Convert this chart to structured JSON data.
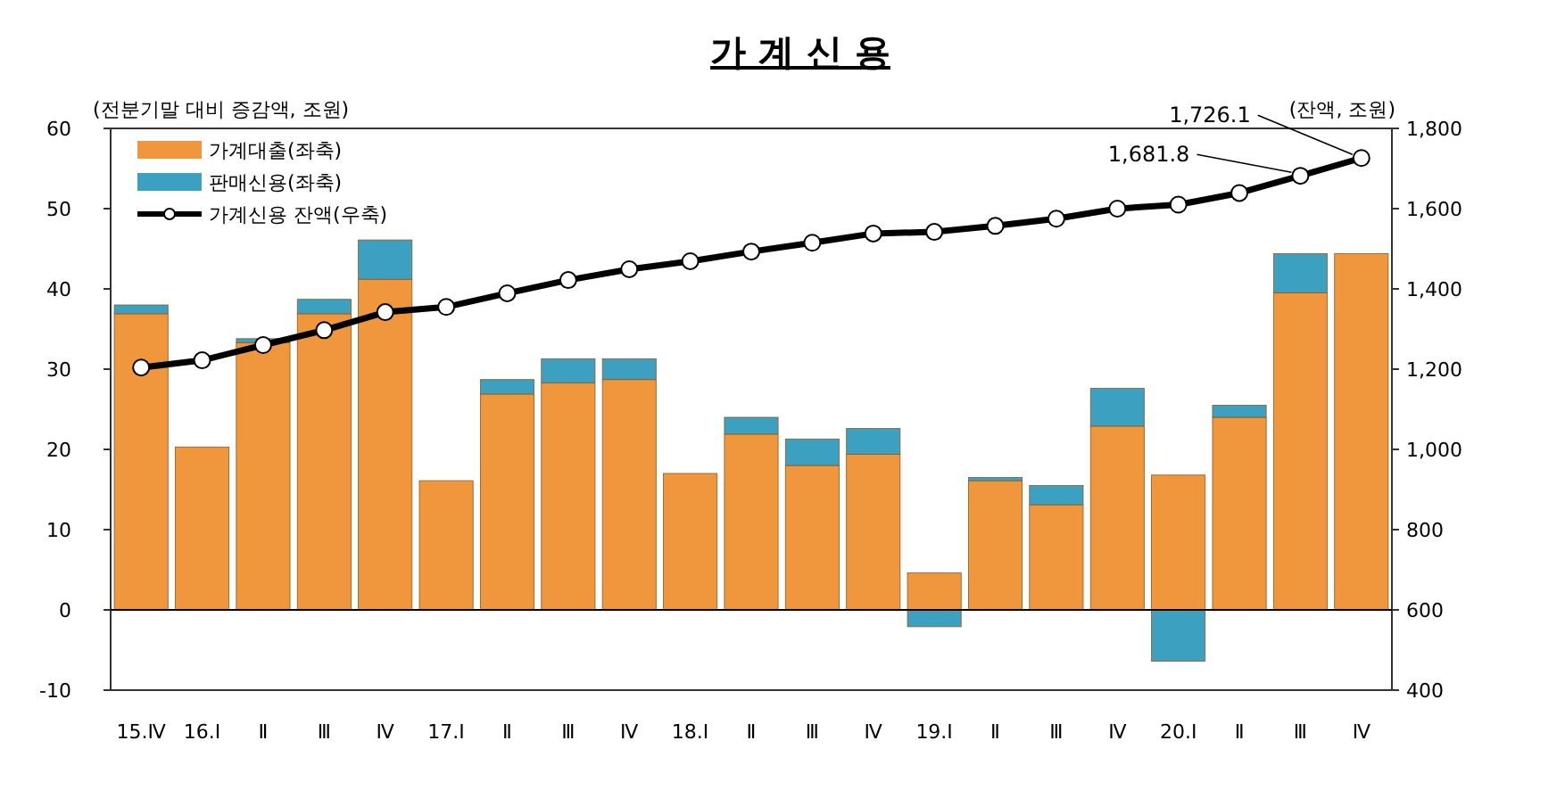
{
  "chart_data": {
    "type": "bar",
    "title": "가 계 신 용",
    "ylabel": "(전분기말 대비 증감액, 조원)",
    "y2label": "(잔액, 조원)",
    "categories": [
      "15.Ⅳ",
      "16.Ⅰ",
      "Ⅱ",
      "Ⅲ",
      "Ⅳ",
      "17.Ⅰ",
      "Ⅱ",
      "Ⅲ",
      "Ⅳ",
      "18.Ⅰ",
      "Ⅱ",
      "Ⅲ",
      "Ⅳ",
      "19.Ⅰ",
      "Ⅱ",
      "Ⅲ",
      "Ⅳ",
      "20.Ⅰ",
      "Ⅱ",
      "Ⅲ",
      "Ⅳ"
    ],
    "stacked": true,
    "series": [
      {
        "name": "가계대출(좌축)",
        "color": "#f0963c",
        "values": [
          36.9,
          20.3,
          33.3,
          36.9,
          41.2,
          16.1,
          26.9,
          28.3,
          28.7,
          17.0,
          21.9,
          18.0,
          19.4,
          4.6,
          16.1,
          13.1,
          22.9,
          16.8,
          24.0,
          39.5,
          44.4
        ]
      },
      {
        "name": "판매신용(좌축)",
        "color": "#3ca0c0",
        "values": [
          1.1,
          0,
          0.5,
          1.8,
          4.9,
          0,
          1.8,
          3.0,
          2.6,
          0,
          2.1,
          3.3,
          3.2,
          -2.1,
          0.4,
          2.4,
          4.7,
          -6.4,
          1.5,
          4.9,
          0
        ]
      },
      {
        "name": "가계신용 잔액(우축)",
        "type": "line",
        "axis": "y2",
        "color": "#000000",
        "marker": "circle",
        "values": [
          1204,
          1222,
          1260,
          1297,
          1342,
          1355,
          1389,
          1422,
          1449,
          1469,
          1493,
          1515,
          1538,
          1542,
          1557,
          1575,
          1600,
          1610,
          1639,
          1681.8,
          1726.1
        ],
        "value_labels": [
          null,
          null,
          null,
          null,
          null,
          null,
          null,
          null,
          null,
          null,
          null,
          null,
          null,
          null,
          null,
          null,
          null,
          null,
          null,
          "1,681.8",
          "1,726.1"
        ]
      }
    ],
    "ylim": [
      -10,
      60
    ],
    "yticks": [
      -10,
      0,
      10,
      20,
      30,
      40,
      50,
      60
    ],
    "y2lim": [
      400,
      1800
    ],
    "y2ticks": [
      400,
      600,
      800,
      {
        "value": 1000,
        "label": "1,000"
      },
      {
        "value": 1200,
        "label": "1,200"
      },
      {
        "value": 1400,
        "label": "1,400"
      },
      {
        "value": 1600,
        "label": "1,600"
      },
      {
        "value": 1800,
        "label": "1,800"
      }
    ],
    "legend": "top left"
  }
}
